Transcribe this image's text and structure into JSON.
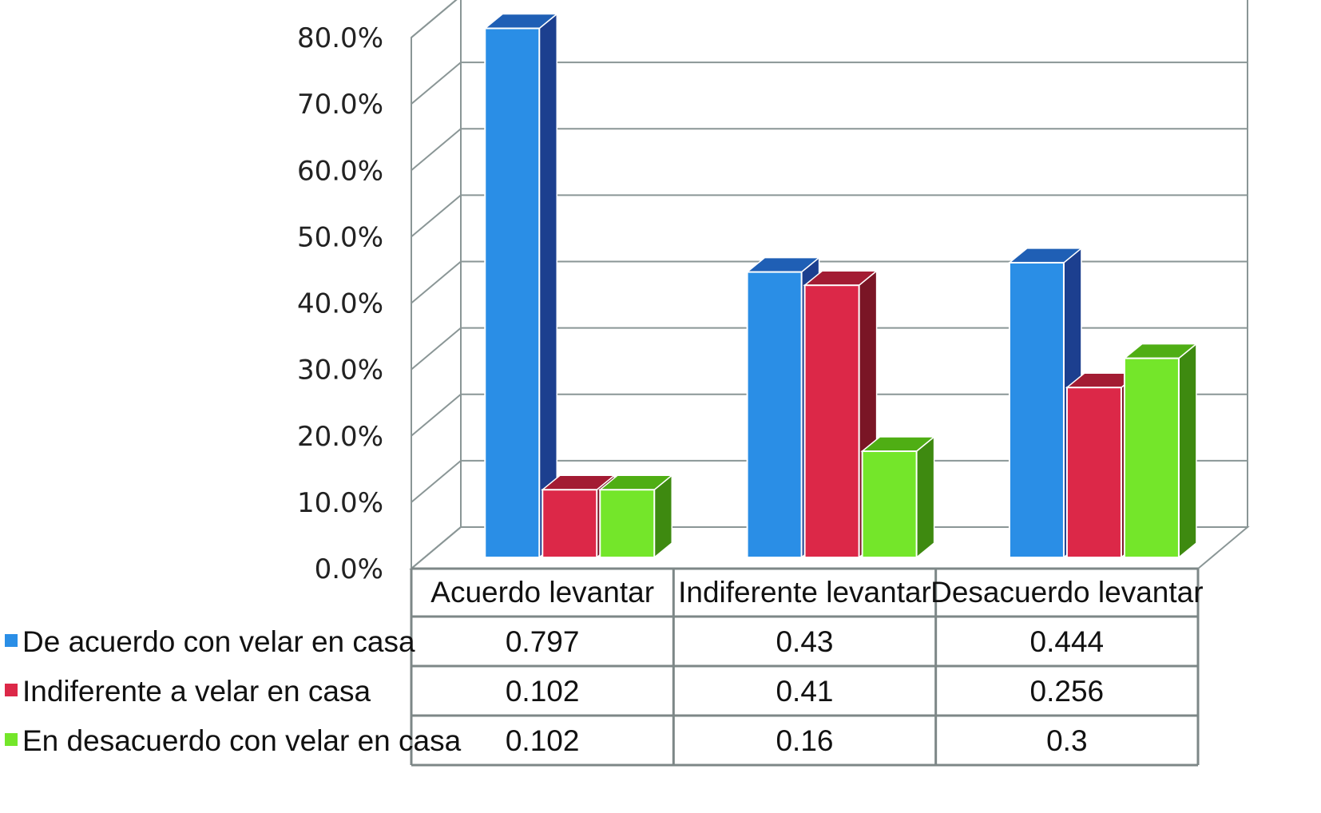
{
  "chart_data": {
    "type": "bar",
    "categories": [
      "Acuerdo levantar",
      "Indiferente levantar",
      "Desacuerdo levantar"
    ],
    "series": [
      {
        "name": "De acuerdo con velar en casa",
        "values": [
          0.797,
          0.43,
          0.444
        ],
        "value_labels": [
          "0.797",
          "0.43",
          "0.444"
        ],
        "color": "#2a8ee6",
        "side_color": "#1c3f8f",
        "top_color": "#1f5fb5"
      },
      {
        "name": "Indiferente a velar en casa",
        "values": [
          0.102,
          0.41,
          0.256
        ],
        "value_labels": [
          "0.102",
          "0.41",
          "0.256"
        ],
        "color": "#dc2848",
        "side_color": "#7a1525",
        "top_color": "#a31c33"
      },
      {
        "name": "En desacuerdo con velar en casa",
        "values": [
          0.102,
          0.16,
          0.3
        ],
        "value_labels": [
          "0.102",
          "0.16",
          "0.3"
        ],
        "color": "#74e62a",
        "side_color": "#3e8a10",
        "top_color": "#4fae14"
      }
    ],
    "ylim": [
      0,
      0.8
    ],
    "yticks": [
      "0.0%",
      "10.0%",
      "20.0%",
      "30.0%",
      "40.0%",
      "50.0%",
      "60.0%",
      "70.0%",
      "80.0%"
    ],
    "grid": true,
    "style": "3d",
    "data_table": true,
    "legend_position": "left of data table"
  }
}
